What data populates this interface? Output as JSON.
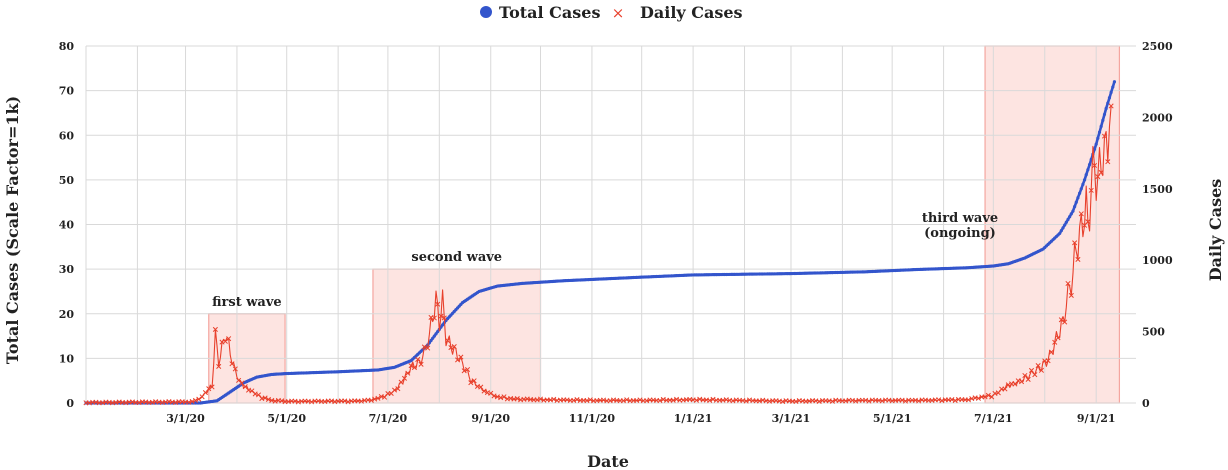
{
  "legend": {
    "total_label": "Total Cases",
    "daily_label": "Daily Cases"
  },
  "colors": {
    "total": "#3355cc",
    "daily": "#e8402c",
    "wave_fill": "#fde4e1",
    "wave_stroke": "#f4a6a0",
    "grid": "#d9d9d9"
  },
  "chart_data": {
    "type": "line",
    "xlabel": "Date",
    "ylabel_left": "Total Cases (Scale Factor=1k)",
    "ylabel_right": "Daily Cases",
    "x_ticks": [
      "3/1/20",
      "5/1/20",
      "7/1/20",
      "9/1/20",
      "11/1/20",
      "1/1/21",
      "3/1/21",
      "5/1/21",
      "7/1/21",
      "9/1/21"
    ],
    "x_range": [
      "1/1/20",
      "9/25/21"
    ],
    "y_left_range": [
      0,
      80
    ],
    "y_left_ticks": [
      "0",
      "10",
      "20",
      "30",
      "40",
      "50",
      "60",
      "70",
      "80"
    ],
    "y_right_range": [
      0,
      2500
    ],
    "y_right_ticks": [
      "0",
      "500",
      "1000",
      "1500",
      "2000",
      "2500"
    ],
    "grid": true,
    "legend_position": "top-center",
    "series": [
      {
        "name": "Total Cases",
        "axis": "left",
        "marker": "dot",
        "points": [
          [
            "1/1/20",
            0
          ],
          [
            "3/10/20",
            0
          ],
          [
            "3/20/20",
            0.5
          ],
          [
            "3/28/20",
            2.5
          ],
          [
            "4/5/20",
            4.5
          ],
          [
            "4/13/20",
            5.8
          ],
          [
            "4/22/20",
            6.4
          ],
          [
            "5/1/20",
            6.6
          ],
          [
            "6/1/20",
            7.0
          ],
          [
            "6/25/20",
            7.4
          ],
          [
            "7/5/20",
            8.0
          ],
          [
            "7/15/20",
            9.5
          ],
          [
            "7/25/20",
            13.0
          ],
          [
            "8/5/20",
            18.5
          ],
          [
            "8/15/20",
            22.5
          ],
          [
            "8/25/20",
            25.0
          ],
          [
            "9/5/20",
            26.2
          ],
          [
            "9/20/20",
            26.8
          ],
          [
            "10/15/20",
            27.4
          ],
          [
            "12/1/20",
            28.2
          ],
          [
            "1/1/21",
            28.7
          ],
          [
            "3/1/21",
            29.0
          ],
          [
            "4/15/21",
            29.4
          ],
          [
            "5/15/21",
            29.9
          ],
          [
            "6/15/21",
            30.3
          ],
          [
            "7/1/21",
            30.7
          ],
          [
            "7/10/21",
            31.2
          ],
          [
            "7/20/21",
            32.5
          ],
          [
            "7/31/21",
            34.5
          ],
          [
            "8/10/21",
            38.0
          ],
          [
            "8/18/21",
            43.0
          ],
          [
            "8/25/21",
            50.0
          ],
          [
            "9/1/21",
            58.0
          ],
          [
            "9/7/21",
            66.0
          ],
          [
            "9/12/21",
            72.0
          ]
        ]
      },
      {
        "name": "Daily Cases",
        "axis": "right",
        "marker": "x",
        "points": [
          [
            "1/1/20",
            0
          ],
          [
            "3/5/20",
            5
          ],
          [
            "3/10/20",
            30
          ],
          [
            "3/14/20",
            80
          ],
          [
            "3/17/20",
            120
          ],
          [
            "3/19/20",
            470
          ],
          [
            "3/21/20",
            280
          ],
          [
            "3/23/20",
            380
          ],
          [
            "3/25/20",
            490
          ],
          [
            "3/27/20",
            400
          ],
          [
            "3/29/20",
            300
          ],
          [
            "3/31/20",
            220
          ],
          [
            "4/3/20",
            140
          ],
          [
            "4/7/20",
            100
          ],
          [
            "4/11/20",
            70
          ],
          [
            "4/16/20",
            35
          ],
          [
            "4/22/20",
            15
          ],
          [
            "5/1/20",
            8
          ],
          [
            "6/10/20",
            10
          ],
          [
            "6/20/20",
            15
          ],
          [
            "6/28/20",
            40
          ],
          [
            "7/5/20",
            80
          ],
          [
            "7/10/20",
            150
          ],
          [
            "7/15/20",
            250
          ],
          [
            "7/20/20",
            280
          ],
          [
            "7/23/20",
            350
          ],
          [
            "7/26/20",
            470
          ],
          [
            "7/28/20",
            600
          ],
          [
            "7/30/20",
            720
          ],
          [
            "8/1/20",
            560
          ],
          [
            "8/3/20",
            710
          ],
          [
            "8/5/20",
            450
          ],
          [
            "8/8/20",
            400
          ],
          [
            "8/12/20",
            330
          ],
          [
            "8/16/20",
            250
          ],
          [
            "8/20/20",
            160
          ],
          [
            "8/25/20",
            110
          ],
          [
            "8/30/20",
            70
          ],
          [
            "9/5/20",
            40
          ],
          [
            "9/15/20",
            25
          ],
          [
            "10/1/20",
            20
          ],
          [
            "11/1/20",
            15
          ],
          [
            "12/1/20",
            15
          ],
          [
            "1/1/21",
            20
          ],
          [
            "3/1/21",
            10
          ],
          [
            "4/15/21",
            15
          ],
          [
            "5/15/21",
            15
          ],
          [
            "6/15/21",
            20
          ],
          [
            "6/25/21",
            40
          ],
          [
            "7/1/21",
            50
          ],
          [
            "7/5/21",
            80
          ],
          [
            "7/10/21",
            120
          ],
          [
            "7/15/21",
            140
          ],
          [
            "7/20/21",
            170
          ],
          [
            "7/25/21",
            210
          ],
          [
            "7/30/21",
            250
          ],
          [
            "8/3/21",
            300
          ],
          [
            "8/6/21",
            380
          ],
          [
            "8/9/21",
            480
          ],
          [
            "8/12/21",
            560
          ],
          [
            "8/14/21",
            700
          ],
          [
            "8/16/21",
            800
          ],
          [
            "8/18/21",
            900
          ],
          [
            "8/20/21",
            1100
          ],
          [
            "8/22/21",
            1150
          ],
          [
            "8/24/21",
            1280
          ],
          [
            "8/26/21",
            1370
          ],
          [
            "8/27/21",
            1220
          ],
          [
            "8/29/21",
            1500
          ],
          [
            "8/31/21",
            1700
          ],
          [
            "9/2/21",
            1500
          ],
          [
            "9/4/21",
            1750
          ],
          [
            "9/6/21",
            1700
          ],
          [
            "9/8/21",
            1900
          ],
          [
            "9/10/21",
            2080
          ]
        ]
      }
    ],
    "annotations": [
      {
        "label": "first wave",
        "x_range": [
          "3/15/20",
          "4/30/20"
        ],
        "y_top_left": 20
      },
      {
        "label": "second wave",
        "x_range": [
          "6/22/20",
          "10/1/20"
        ],
        "y_top_left": 30
      },
      {
        "label_lines": [
          "third wave",
          "(ongoing)"
        ],
        "x_range": [
          "6/26/21",
          "9/15/21"
        ],
        "y_top_left": 80
      }
    ]
  }
}
